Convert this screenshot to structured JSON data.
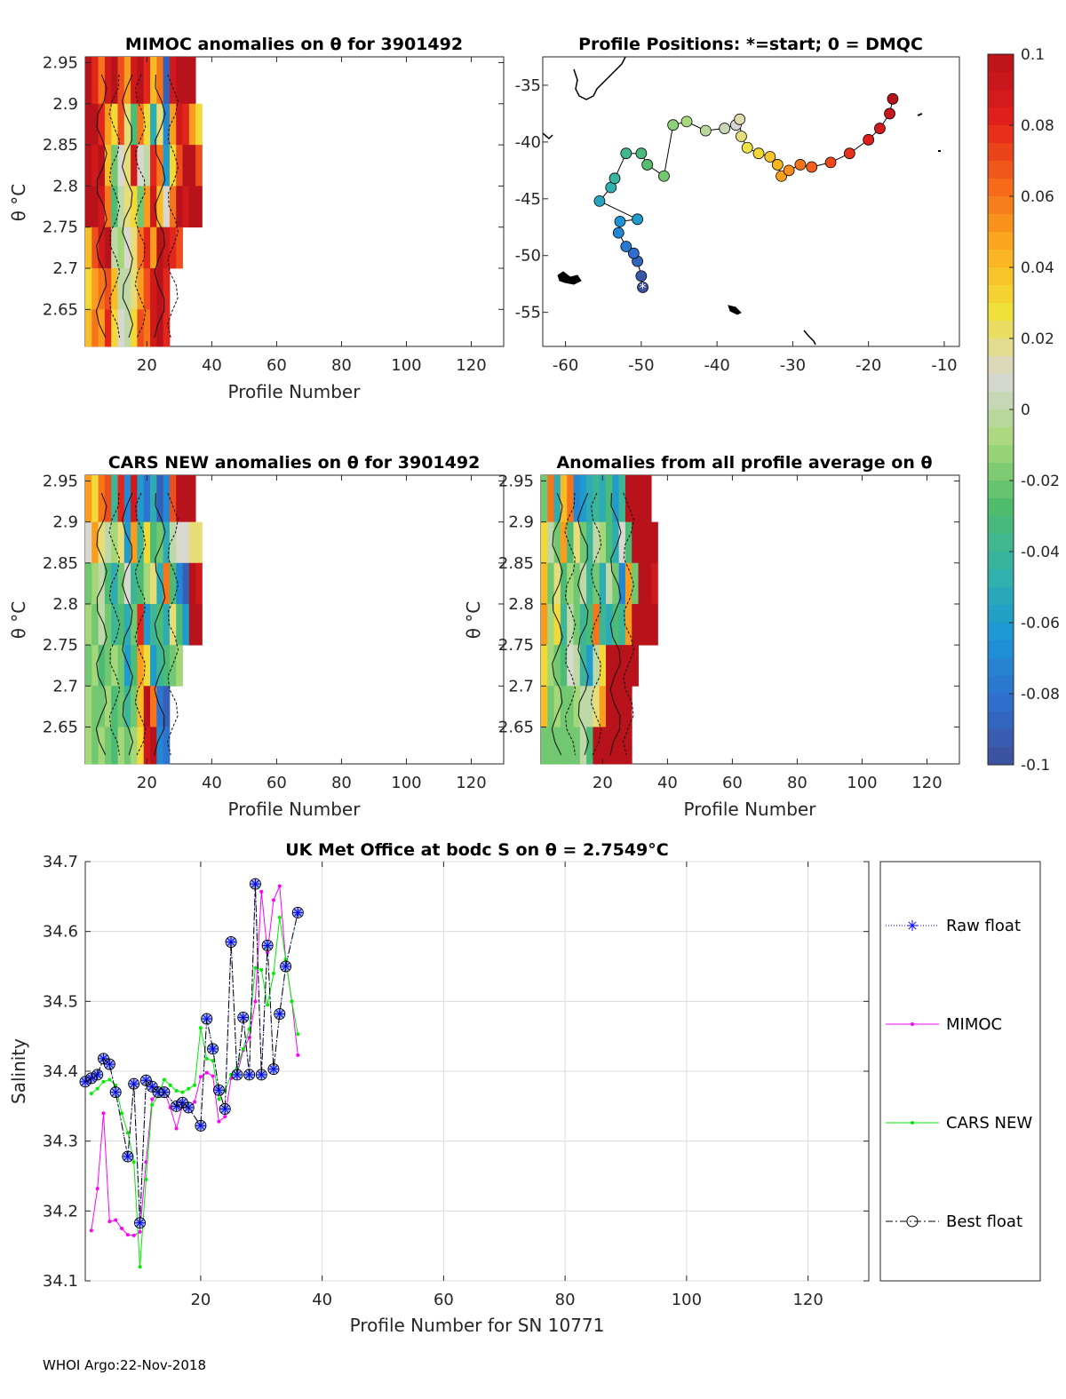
{
  "footer": "WHOI Argo:22-Nov-2018",
  "colorbar": {
    "min": -0.1,
    "max": 0.1,
    "tick_labels": [
      "0.1",
      "0.08",
      "0.06",
      "0.04",
      "0.02",
      "0",
      "-0.02",
      "-0.04",
      "-0.06",
      "-0.08",
      "-0.1"
    ],
    "tick_values": [
      0.1,
      0.08,
      0.06,
      0.04,
      0.02,
      0,
      -0.02,
      -0.04,
      -0.06,
      -0.08,
      -0.1
    ],
    "colors": [
      "#3d4e9a",
      "#2f6fcf",
      "#1b96d5",
      "#34b3a8",
      "#4fbc6c",
      "#a7d879",
      "#d7d7d7",
      "#f0e13a",
      "#fcae1e",
      "#f4671a",
      "#e11f1c",
      "#b8121a"
    ]
  },
  "chart_data": [
    {
      "id": "mimoc_anom",
      "type": "heatmap",
      "title": "MIMOC anomalies on θ  for 3901492",
      "xlabel": "Profile Number",
      "ylabel": "θ °C",
      "xlim": [
        1,
        130
      ],
      "ylim": [
        2.605,
        2.957
      ],
      "xticks": [
        20,
        40,
        60,
        80,
        100,
        120
      ],
      "yticks": [
        2.65,
        2.7,
        2.75,
        2.8,
        2.85,
        2.9,
        2.95
      ],
      "ytick_labels": [
        "2.65",
        "2.7",
        "2.75",
        "2.8",
        "2.85",
        "2.9",
        "2.95"
      ],
      "theta_levels": [
        2.95,
        2.9,
        2.85,
        2.8,
        2.75,
        2.7,
        2.65
      ],
      "profiles": [
        2,
        4,
        6,
        8,
        10,
        12,
        14,
        16,
        18,
        20,
        22,
        24,
        26,
        28,
        30,
        32,
        34,
        36
      ],
      "anomaly_rows": [
        [
          0.1,
          0.08,
          0.06,
          0.09,
          0.1,
          0.07,
          0.05,
          0.09,
          0.1,
          0.08,
          0.04,
          0.06,
          -0.09,
          0.09,
          0.1,
          0.1,
          0.1,
          null
        ],
        [
          0.1,
          0.1,
          0.08,
          0.05,
          0.03,
          0.07,
          0.02,
          -0.03,
          0.06,
          0.03,
          -0.05,
          0.02,
          -0.07,
          0.05,
          0.09,
          0.08,
          0.05,
          0.03
        ],
        [
          0.1,
          0.09,
          0.1,
          0.04,
          -0.02,
          0.01,
          0.02,
          0.09,
          0.01,
          0.0,
          0.08,
          0.06,
          -0.06,
          0.03,
          0.07,
          0.1,
          0.1,
          0.07
        ],
        [
          0.1,
          0.1,
          0.09,
          0.06,
          -0.03,
          0.0,
          0.02,
          0.03,
          -0.02,
          0.05,
          0.09,
          0.04,
          0.01,
          0.06,
          0.1,
          0.09,
          0.1,
          0.1
        ],
        [
          0.04,
          0.07,
          0.09,
          0.1,
          0.0,
          -0.01,
          0.01,
          0.02,
          0.06,
          0.08,
          0.05,
          0.1,
          0.09,
          0.08,
          0.07,
          null,
          null,
          null
        ],
        [
          0.03,
          0.05,
          0.06,
          0.07,
          0.04,
          0.0,
          0.0,
          0.02,
          0.05,
          0.07,
          0.09,
          0.1,
          0.08,
          null,
          null,
          null,
          null,
          null
        ],
        [
          0.04,
          0.06,
          0.05,
          0.08,
          0.03,
          0.01,
          0.0,
          0.03,
          0.07,
          0.06,
          0.09,
          0.1,
          0.08,
          null,
          null,
          null,
          null,
          null
        ]
      ]
    },
    {
      "id": "positions",
      "type": "scatter",
      "title": "Profile Positions: *=start; 0 = DMQC",
      "xlim": [
        -63,
        -8
      ],
      "ylim": [
        -58,
        -32.5
      ],
      "xticks": [
        -60,
        -50,
        -40,
        -30,
        -20,
        -10
      ],
      "yticks": [
        -35,
        -40,
        -45,
        -50,
        -55
      ],
      "track": [
        [
          -49.8,
          -52.8
        ],
        [
          -50.0,
          -51.8
        ],
        [
          -50.5,
          -50.5
        ],
        [
          -51.0,
          -49.8
        ],
        [
          -52.0,
          -49.2
        ],
        [
          -53.0,
          -48.0
        ],
        [
          -52.8,
          -47.0
        ],
        [
          -50.5,
          -46.8
        ],
        [
          -55.5,
          -45.2
        ],
        [
          -54.0,
          -44.0
        ],
        [
          -53.5,
          -43.2
        ],
        [
          -52.0,
          -41.0
        ],
        [
          -50.0,
          -41.0
        ],
        [
          -49.2,
          -42.0
        ],
        [
          -47.0,
          -43.0
        ],
        [
          -45.8,
          -38.5
        ],
        [
          -44.0,
          -38.2
        ],
        [
          -41.5,
          -39.0
        ],
        [
          -39.0,
          -38.8
        ],
        [
          -37.5,
          -38.5
        ],
        [
          -37.0,
          -38.0
        ],
        [
          -36.8,
          -39.5
        ],
        [
          -36.0,
          -40.5
        ],
        [
          -34.5,
          -41.0
        ],
        [
          -33.0,
          -41.3
        ],
        [
          -32.0,
          -42.0
        ],
        [
          -31.5,
          -43.0
        ],
        [
          -30.5,
          -42.5
        ],
        [
          -29.0,
          -42.0
        ],
        [
          -27.5,
          -42.2
        ],
        [
          -25.0,
          -41.8
        ],
        [
          -22.5,
          -41.0
        ],
        [
          -20.0,
          -39.8
        ],
        [
          -18.5,
          -38.8
        ],
        [
          -17.2,
          -37.5
        ],
        [
          -16.8,
          -36.2
        ]
      ],
      "coast_labels": []
    },
    {
      "id": "cars_anom",
      "type": "heatmap",
      "title": "CARS NEW anomalies on θ for 3901492",
      "xlabel": "Profile Number",
      "ylabel": "θ °C",
      "xlim": [
        1,
        130
      ],
      "ylim": [
        2.605,
        2.957
      ],
      "xticks": [
        20,
        40,
        60,
        80,
        100,
        120
      ],
      "yticks": [
        2.65,
        2.7,
        2.75,
        2.8,
        2.85,
        2.9,
        2.95
      ],
      "ytick_labels": [
        "2.65",
        "2.7",
        "2.75",
        "2.8",
        "2.85",
        "2.9",
        "2.95"
      ],
      "profiles": [
        2,
        4,
        6,
        8,
        10,
        12,
        14,
        16,
        18,
        20,
        22,
        24,
        26,
        28,
        30,
        32,
        34,
        36
      ],
      "anomaly_rows": [
        [
          0.05,
          0.03,
          0.06,
          0.07,
          -0.04,
          0.08,
          -0.07,
          0.09,
          -0.06,
          -0.08,
          -0.05,
          -0.09,
          -0.07,
          0.07,
          0.1,
          0.1,
          0.1,
          null
        ],
        [
          0.01,
          0.05,
          0.02,
          0.0,
          -0.01,
          0.02,
          -0.06,
          0.05,
          -0.04,
          0.03,
          -0.03,
          -0.02,
          -0.05,
          0.0,
          0.01,
          0.01,
          0.02,
          0.02
        ],
        [
          -0.02,
          -0.01,
          0.0,
          -0.03,
          -0.05,
          -0.02,
          0.01,
          -0.04,
          -0.03,
          -0.01,
          0.02,
          -0.05,
          0.06,
          -0.03,
          -0.07,
          -0.09,
          0.1,
          0.09
        ],
        [
          -0.01,
          -0.02,
          0.0,
          -0.02,
          -0.04,
          -0.03,
          -0.05,
          -0.02,
          0.08,
          -0.06,
          -0.04,
          -0.03,
          -0.05,
          0.02,
          -0.03,
          -0.06,
          0.1,
          0.1
        ],
        [
          -0.02,
          -0.01,
          -0.03,
          -0.02,
          -0.01,
          -0.02,
          -0.06,
          -0.03,
          0.05,
          0.03,
          -0.06,
          -0.04,
          -0.03,
          -0.02,
          -0.01,
          null,
          null,
          null
        ],
        [
          -0.01,
          -0.02,
          -0.02,
          -0.01,
          -0.03,
          -0.02,
          -0.04,
          -0.02,
          0.04,
          0.1,
          0.06,
          -0.08,
          -0.09,
          null,
          null,
          null,
          null,
          null
        ],
        [
          -0.01,
          -0.02,
          -0.01,
          -0.02,
          -0.03,
          -0.01,
          -0.02,
          -0.01,
          0.03,
          0.09,
          0.1,
          -0.07,
          -0.08,
          null,
          null,
          null,
          null,
          null
        ]
      ]
    },
    {
      "id": "avg_anom",
      "type": "heatmap",
      "title": "Anomalies from all profile average on θ",
      "xlabel": "Profile Number",
      "ylabel": "θ °C",
      "xlim": [
        1,
        130
      ],
      "ylim": [
        2.605,
        2.957
      ],
      "xticks": [
        20,
        40,
        60,
        80,
        100,
        120
      ],
      "yticks": [
        2.65,
        2.7,
        2.75,
        2.8,
        2.85,
        2.9,
        2.95
      ],
      "ytick_labels": [
        "2.65",
        "2.7",
        "2.75",
        "2.8",
        "2.85",
        "2.9",
        "2.95"
      ],
      "profiles": [
        2,
        4,
        6,
        8,
        10,
        12,
        14,
        16,
        18,
        20,
        22,
        24,
        26,
        28,
        30,
        32,
        34,
        36
      ],
      "anomaly_rows": [
        [
          -0.02,
          0.06,
          -0.05,
          0.04,
          0.06,
          -0.07,
          -0.06,
          -0.05,
          -0.04,
          -0.05,
          -0.03,
          -0.06,
          -0.04,
          0.1,
          0.1,
          0.1,
          0.1,
          null
        ],
        [
          0.03,
          0.0,
          -0.02,
          0.05,
          -0.03,
          0.02,
          -0.02,
          -0.04,
          0.0,
          -0.01,
          -0.03,
          -0.05,
          0.01,
          -0.03,
          0.1,
          0.1,
          0.1,
          0.1
        ],
        [
          0.04,
          -0.02,
          0.02,
          -0.03,
          -0.01,
          -0.02,
          0.0,
          -0.04,
          -0.02,
          -0.05,
          0.0,
          -0.02,
          -0.07,
          0.05,
          -0.02,
          0.1,
          0.1,
          0.09
        ],
        [
          0.05,
          -0.01,
          0.03,
          -0.04,
          0.0,
          -0.02,
          -0.04,
          -0.03,
          0.06,
          -0.04,
          -0.05,
          -0.03,
          -0.04,
          0.05,
          0.1,
          0.1,
          0.1,
          0.1
        ],
        [
          0.03,
          -0.01,
          -0.02,
          -0.03,
          0.01,
          0.0,
          -0.04,
          -0.06,
          0.0,
          0.03,
          0.1,
          0.1,
          0.1,
          0.1,
          0.1,
          null,
          null,
          null
        ],
        [
          0.04,
          -0.02,
          -0.01,
          -0.02,
          -0.02,
          -0.01,
          0.0,
          0.0,
          0.02,
          0.05,
          0.1,
          0.1,
          0.1,
          0.1,
          null,
          null,
          null,
          null
        ],
        [
          -0.02,
          -0.02,
          -0.02,
          -0.02,
          -0.02,
          -0.02,
          0.0,
          -0.03,
          0.1,
          0.1,
          0.1,
          0.1,
          0.1,
          0.1,
          null,
          null,
          null,
          null
        ]
      ]
    },
    {
      "id": "salinity",
      "type": "line",
      "title": "UK Met Office at bodc S on θ = 2.7549°C",
      "xlabel": "Profile Number for SN 10771",
      "ylabel": "Salinity",
      "xlim": [
        1,
        130
      ],
      "ylim": [
        34.1,
        34.7
      ],
      "xticks": [
        20,
        40,
        60,
        80,
        100,
        120
      ],
      "yticks": [
        34.1,
        34.2,
        34.3,
        34.4,
        34.5,
        34.6,
        34.7
      ],
      "ytick_labels": [
        "34.1",
        "34.2",
        "34.3",
        "34.4",
        "34.5",
        "34.6",
        "34.7"
      ],
      "legend_position": "right",
      "series": [
        {
          "name": "Raw float",
          "style": "dotted-blue-star",
          "x": [
            1,
            2,
            3,
            4,
            5,
            6,
            8,
            9,
            10,
            11,
            12,
            13,
            14,
            16,
            17,
            18,
            20,
            21,
            22,
            23,
            24,
            25,
            26,
            27,
            28,
            29,
            30,
            31,
            32,
            33,
            34,
            36
          ],
          "values": [
            34.385,
            34.39,
            34.395,
            34.418,
            34.41,
            34.37,
            34.278,
            34.382,
            34.183,
            34.387,
            34.378,
            34.37,
            34.37,
            34.35,
            34.355,
            34.348,
            34.322,
            34.475,
            34.432,
            34.373,
            34.346,
            34.585,
            34.395,
            34.477,
            34.395,
            34.668,
            34.395,
            34.58,
            34.403,
            34.482,
            34.55,
            34.627
          ]
        },
        {
          "name": "MIMOC",
          "style": "solid-magenta-dot",
          "x": [
            2,
            3,
            4,
            5,
            6,
            7,
            8,
            9,
            10,
            11,
            12,
            13,
            14,
            15,
            16,
            17,
            18,
            19,
            20,
            21,
            22,
            23,
            24,
            25,
            26,
            27,
            28,
            29,
            30,
            31,
            32,
            33,
            34,
            35,
            36
          ],
          "values": [
            34.172,
            34.232,
            34.34,
            34.185,
            34.187,
            34.175,
            34.166,
            34.165,
            34.17,
            34.27,
            34.36,
            34.368,
            34.372,
            34.348,
            34.318,
            34.35,
            34.345,
            34.356,
            34.392,
            34.398,
            34.393,
            34.328,
            34.335,
            34.39,
            34.395,
            34.43,
            34.448,
            34.5,
            34.657,
            34.57,
            34.645,
            34.665,
            34.56,
            34.5,
            34.423
          ]
        },
        {
          "name": "CARS NEW",
          "style": "solid-green-dot",
          "x": [
            2,
            3,
            4,
            5,
            6,
            7,
            8,
            9,
            10,
            11,
            12,
            13,
            14,
            15,
            16,
            17,
            18,
            19,
            20,
            21,
            22,
            23,
            24,
            25,
            26,
            27,
            28,
            29,
            30,
            31,
            32,
            33,
            34,
            35,
            36
          ],
          "values": [
            34.368,
            34.375,
            34.385,
            34.388,
            34.38,
            34.34,
            34.312,
            34.27,
            34.12,
            34.245,
            34.352,
            34.365,
            34.388,
            34.38,
            34.372,
            34.37,
            34.375,
            34.38,
            34.462,
            34.418,
            34.415,
            34.36,
            34.372,
            34.395,
            34.405,
            34.432,
            34.46,
            34.548,
            34.545,
            34.495,
            34.54,
            34.62,
            34.56,
            34.5,
            34.453
          ]
        },
        {
          "name": "Best float",
          "style": "dashdot-black-circle",
          "x": [
            1,
            2,
            3,
            4,
            5,
            6,
            8,
            9,
            10,
            11,
            12,
            13,
            14,
            16,
            17,
            18,
            20,
            21,
            22,
            23,
            24,
            25,
            26,
            27,
            28,
            29,
            30,
            31,
            32,
            33,
            34,
            36
          ],
          "values": [
            34.385,
            34.39,
            34.395,
            34.418,
            34.41,
            34.37,
            34.278,
            34.382,
            34.183,
            34.387,
            34.378,
            34.37,
            34.37,
            34.35,
            34.355,
            34.348,
            34.322,
            34.475,
            34.432,
            34.373,
            34.346,
            34.585,
            34.395,
            34.477,
            34.395,
            34.668,
            34.395,
            34.58,
            34.403,
            34.482,
            34.55,
            34.627
          ]
        }
      ]
    }
  ]
}
